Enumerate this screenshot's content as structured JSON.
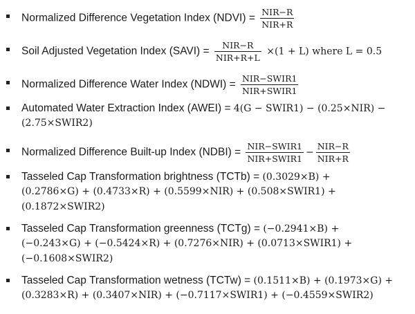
{
  "ndvi": {
    "label": "Normalized Difference Vegetation Index (NDVI) = ",
    "num": "NIR−R",
    "den": "NIR+R"
  },
  "savi": {
    "label": "Soil Adjusted Vegetation Index (SAVI) = ",
    "num": "NIR−R",
    "den": "NIR+R+L",
    "tail": " ×(1 + L) where L = 0.5"
  },
  "ndwi": {
    "label": "Normalized Difference Water Index (NDWI) = ",
    "num": "NIR−SWIR1",
    "den": "NIR+SWIR1"
  },
  "awei": {
    "label": "Automated Water Extraction Index (AWEI) = ",
    "expr1": "4(G − SWIR1) − (0.25×NIR) −",
    "expr2": "(2.75×SWIR2)"
  },
  "ndbi": {
    "label": "Normalized Difference Built-up Index (NDBI) = ",
    "num1": "NIR−SWIR1",
    "den1": "NIR+SWIR1",
    "minus": "−",
    "num2": "NIR−R",
    "den2": "NIR+R"
  },
  "tctb": {
    "label": "Tasseled Cap Transformation brightness (TCTb) = ",
    "expr1": "(0.3029×B) +",
    "expr2": "(0.2786×G) + (0.4733×R) + (0.5599×NIR) + (0.508×SWIR1) +",
    "expr3": "(0.1872×SWIR2)"
  },
  "tctg": {
    "label": "Tasseled Cap Transformation greenness (TCTg) = ",
    "expr1": "(−0.2941×B) +",
    "expr2": "(−0.243×G) + (−0.5424×R) + (0.7276×NIR) + (0.0713×SWIR1) +",
    "expr3": "(−0.1608×SWIR2)"
  },
  "tctw": {
    "label": "Tasseled Cap Transformation wetness (TCTw) = ",
    "expr1": "(0.1511×B) + (0.1973×G) +",
    "expr2": "(0.3283×R) + (0.3407×NIR) + (−0.7117×SWIR1) + (−0.4559×SWIR2)"
  }
}
